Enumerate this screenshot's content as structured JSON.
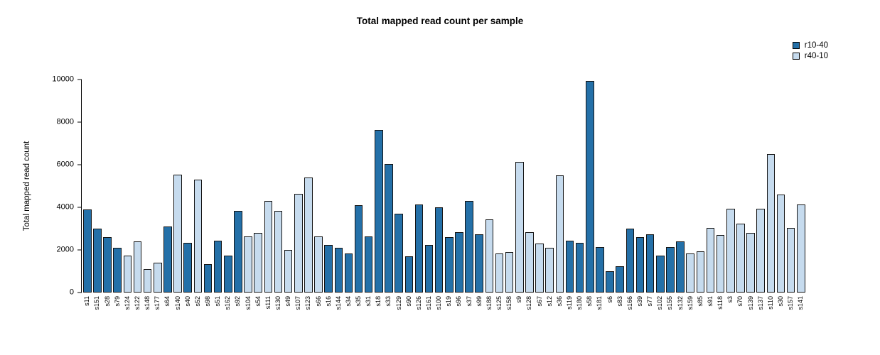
{
  "title": "Total mapped read count per sample",
  "y_axis": {
    "label": "Total mapped read count",
    "ticks": [
      0,
      2000,
      4000,
      6000,
      8000,
      10000
    ]
  },
  "legend": [
    {
      "label": "r10-40",
      "color": "#2470a8"
    },
    {
      "label": "r40-10",
      "color": "#c6dbee"
    }
  ],
  "chart_data": {
    "type": "bar",
    "title": "Total mapped read count per sample",
    "xlabel": "",
    "ylabel": "Total mapped read count",
    "ylim": [
      0,
      10000
    ],
    "grid": false,
    "legend_position": "top-right",
    "categories": [
      "s11",
      "s151",
      "s28",
      "s79",
      "s124",
      "s122",
      "s148",
      "s177",
      "s64",
      "s140",
      "s40",
      "s52",
      "s98",
      "s51",
      "s162",
      "s92",
      "s104",
      "s54",
      "s111",
      "s130",
      "s49",
      "s107",
      "s123",
      "s66",
      "s16",
      "s144",
      "s34",
      "s35",
      "s31",
      "s18",
      "s33",
      "s129",
      "s90",
      "s126",
      "s161",
      "s100",
      "s19",
      "s96",
      "s37",
      "s99",
      "s188",
      "s125",
      "s158",
      "s9",
      "s128",
      "s67",
      "s12",
      "s36",
      "s119",
      "s180",
      "s58",
      "s181",
      "s6",
      "s83",
      "s166",
      "s39",
      "s77",
      "s102",
      "s155",
      "s132",
      "s159",
      "s85",
      "s91",
      "s118",
      "s3",
      "s70",
      "s139",
      "s137",
      "s110",
      "s30",
      "s157",
      "s141"
    ],
    "values": [
      3900,
      3000,
      2600,
      2100,
      1750,
      2400,
      1100,
      1400,
      3100,
      5550,
      2350,
      5300,
      1350,
      2450,
      1750,
      3850,
      2650,
      2800,
      4300,
      3850,
      2000,
      4650,
      5400,
      2650,
      2250,
      2100,
      1850,
      4100,
      2650,
      7650,
      6050,
      3700,
      1700,
      4150,
      2250,
      4000,
      2600,
      2850,
      4300,
      2750,
      3450,
      1850,
      1900,
      6150,
      2850,
      2300,
      2100,
      5500,
      2450,
      2350,
      9950,
      2150,
      1000,
      1250,
      3000,
      2600,
      2750,
      1750,
      2150,
      2400,
      1850,
      1950,
      3050,
      2700,
      3950,
      3250,
      2800,
      3950,
      6500,
      4600,
      3050,
      4150
    ],
    "groups": [
      "r10-40",
      "r10-40",
      "r10-40",
      "r10-40",
      "r40-10",
      "r40-10",
      "r40-10",
      "r40-10",
      "r10-40",
      "r40-10",
      "r10-40",
      "r40-10",
      "r10-40",
      "r10-40",
      "r10-40",
      "r10-40",
      "r40-10",
      "r40-10",
      "r40-10",
      "r40-10",
      "r40-10",
      "r40-10",
      "r40-10",
      "r40-10",
      "r10-40",
      "r10-40",
      "r10-40",
      "r10-40",
      "r10-40",
      "r10-40",
      "r10-40",
      "r10-40",
      "r10-40",
      "r10-40",
      "r10-40",
      "r10-40",
      "r10-40",
      "r10-40",
      "r10-40",
      "r10-40",
      "r40-10",
      "r40-10",
      "r40-10",
      "r40-10",
      "r40-10",
      "r40-10",
      "r40-10",
      "r40-10",
      "r10-40",
      "r10-40",
      "r10-40",
      "r10-40",
      "r10-40",
      "r10-40",
      "r10-40",
      "r10-40",
      "r10-40",
      "r10-40",
      "r10-40",
      "r10-40",
      "r40-10",
      "r40-10",
      "r40-10",
      "r40-10",
      "r40-10",
      "r40-10",
      "r40-10",
      "r40-10",
      "r40-10",
      "r40-10",
      "r40-10",
      "r40-10"
    ]
  }
}
